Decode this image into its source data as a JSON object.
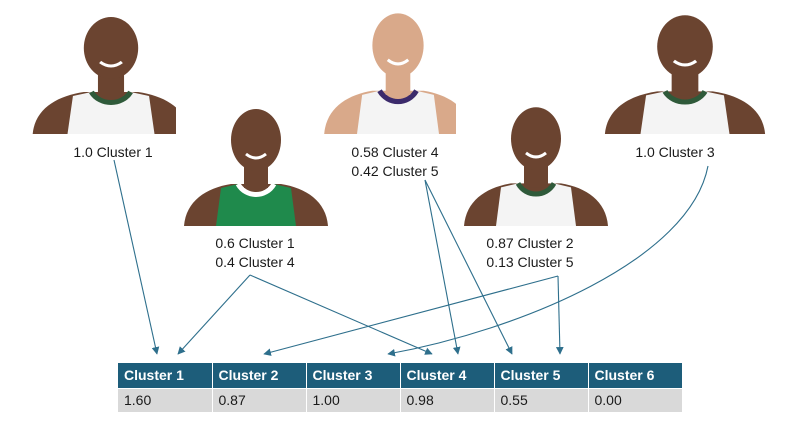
{
  "players": [
    {
      "photo_name": "player-photo-1",
      "jersey": "white-green",
      "lines": [
        "1.0 Cluster 1"
      ]
    },
    {
      "photo_name": "player-photo-2",
      "jersey": "green-celtics",
      "lines": [
        "0.6 Cluster 1",
        "0.4 Cluster 4"
      ]
    },
    {
      "photo_name": "player-photo-3",
      "jersey": "white-purple",
      "lines": [
        "0.58 Cluster 4",
        "0.42 Cluster 5"
      ]
    },
    {
      "photo_name": "player-photo-4",
      "jersey": "white-green",
      "lines": [
        "0.87 Cluster 2",
        "0.13 Cluster 5"
      ]
    },
    {
      "photo_name": "player-photo-5",
      "jersey": "white-green",
      "lines": [
        "1.0 Cluster 3"
      ]
    }
  ],
  "table": {
    "headers": [
      "Cluster 1",
      "Cluster 2",
      "Cluster 3",
      "Cluster 4",
      "Cluster 5",
      "Cluster 6"
    ],
    "values": [
      "1.60",
      "0.87",
      "1.00",
      "0.98",
      "0.55",
      "0.00"
    ]
  },
  "colors": {
    "arrow": "#2e6f8c",
    "header_bg": "#1d5d7a",
    "cell_bg": "#d9d9d9"
  }
}
